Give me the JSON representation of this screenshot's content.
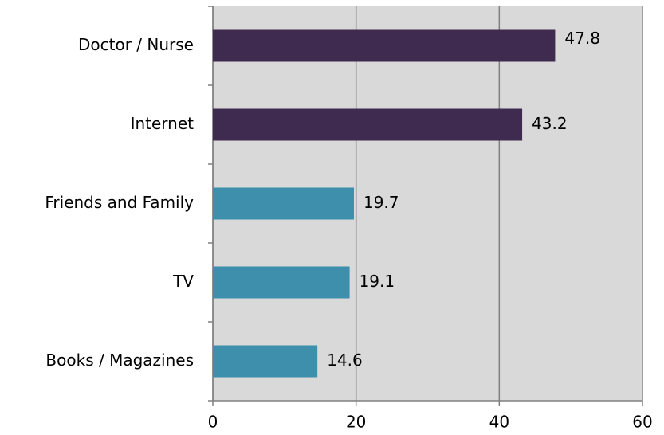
{
  "chart_data": {
    "type": "barh",
    "categories": [
      "Doctor / Nurse",
      "Internet",
      "Friends and Family",
      "TV",
      "Books / Magazines"
    ],
    "values": [
      47.8,
      43.2,
      19.7,
      19.1,
      14.6
    ],
    "colors": [
      "#3f2a50",
      "#3f2a50",
      "#3d8fab",
      "#3d8fab",
      "#3d8fab"
    ],
    "xlim": [
      0,
      60
    ],
    "xticks": [
      0,
      20,
      40,
      60
    ],
    "grid": true
  }
}
